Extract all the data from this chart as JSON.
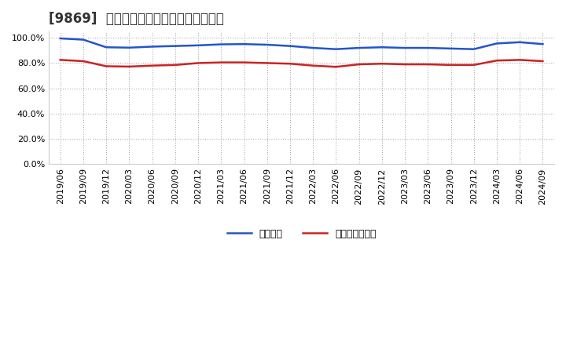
{
  "title": "[9869]  固定比率、固定長期適合率の推移",
  "x_labels": [
    "2019/06",
    "2019/09",
    "2019/12",
    "2020/03",
    "2020/06",
    "2020/09",
    "2020/12",
    "2021/03",
    "2021/06",
    "2021/09",
    "2021/12",
    "2022/03",
    "2022/06",
    "2022/09",
    "2022/12",
    "2023/03",
    "2023/06",
    "2023/09",
    "2023/12",
    "2024/03",
    "2024/06",
    "2024/09"
  ],
  "fixed_ratio": [
    99.5,
    98.5,
    92.5,
    92.2,
    93.0,
    93.5,
    94.0,
    94.8,
    95.0,
    94.5,
    93.5,
    92.0,
    91.0,
    92.0,
    92.5,
    92.0,
    92.0,
    91.5,
    91.0,
    95.5,
    96.5,
    95.0
  ],
  "fixed_long_ratio": [
    82.5,
    81.5,
    77.5,
    77.2,
    78.0,
    78.5,
    80.0,
    80.5,
    80.5,
    80.0,
    79.5,
    78.0,
    77.0,
    79.0,
    79.5,
    79.0,
    79.0,
    78.5,
    78.5,
    82.0,
    82.5,
    81.5
  ],
  "line_color_blue": "#2255cc",
  "line_color_red": "#cc2222",
  "legend_blue": "固定比率",
  "legend_red": "固定長期適合率",
  "ylim": [
    0,
    105
  ],
  "yticks": [
    0,
    20,
    40,
    60,
    80,
    100
  ],
  "background_color": "#ffffff",
  "grid_color": "#999999",
  "title_fontsize": 12,
  "tick_fontsize": 8,
  "legend_fontsize": 9
}
